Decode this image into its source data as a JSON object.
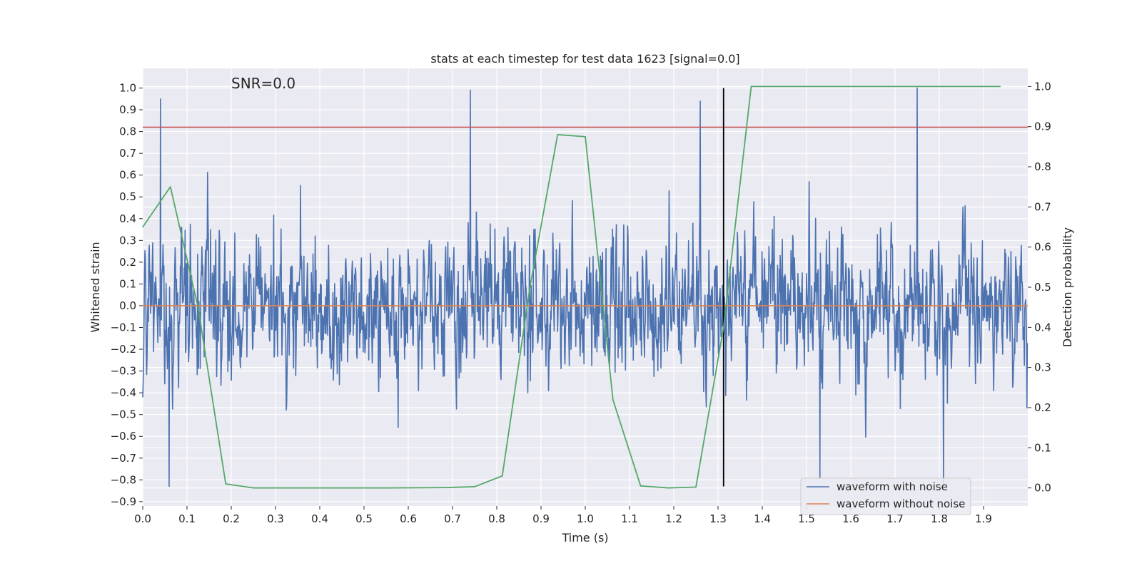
{
  "chart_data": {
    "type": "line",
    "title": "stats at each timestep for test data 1623 [signal=0.0]",
    "annotation": "SNR=0.0",
    "xlabel": "Time (s)",
    "ylabel": "Whitened strain",
    "y2label": "Detection probability",
    "xlim": [
      0.0,
      2.0
    ],
    "ylim": [
      -0.92,
      1.09
    ],
    "y2lim": [
      -0.045,
      1.045
    ],
    "x_ticks": [
      "0.0",
      "0.1",
      "0.2",
      "0.3",
      "0.4",
      "0.5",
      "0.6",
      "0.7",
      "0.8",
      "0.9",
      "1.0",
      "1.1",
      "1.2",
      "1.3",
      "1.4",
      "1.5",
      "1.6",
      "1.7",
      "1.8",
      "1.9"
    ],
    "y_ticks": [
      "1.0",
      "0.9",
      "0.8",
      "0.7",
      "0.6",
      "0.5",
      "0.4",
      "0.3",
      "0.2",
      "0.1",
      "0.0",
      "−0.1",
      "−0.2",
      "−0.3",
      "−0.4",
      "−0.5",
      "−0.6",
      "−0.7",
      "−0.8",
      "−0.9"
    ],
    "y2_ticks": [
      "1.0",
      "0.9",
      "0.8",
      "0.7",
      "0.6",
      "0.5",
      "0.4",
      "0.3",
      "0.2",
      "0.1",
      "0.0"
    ],
    "grid": true,
    "legend_position": "bottom-right",
    "series": [
      {
        "name": "waveform with noise",
        "axis": "left",
        "color": "#4c72b0",
        "sample_rate": 1024,
        "amplitude_range": [
          -0.83,
          1.0
        ],
        "notable_peaks": [
          [
            0.04,
            0.95
          ],
          [
            0.74,
            0.99
          ],
          [
            1.75,
            1.0
          ],
          [
            1.26,
            0.94
          ],
          [
            0.06,
            -0.83
          ],
          [
            1.81,
            -0.83
          ],
          [
            1.53,
            -0.79
          ]
        ]
      },
      {
        "name": "waveform without noise",
        "axis": "left",
        "color": "#dd8452",
        "x": [
          0.0,
          2.0
        ],
        "y": [
          0.0,
          0.0
        ]
      },
      {
        "axis": "right",
        "color": "#55a868",
        "x": [
          0.0,
          0.0625,
          0.125,
          0.1875,
          0.25,
          0.3125,
          0.375,
          0.4375,
          0.5,
          0.5625,
          0.625,
          0.6875,
          0.75,
          0.8125,
          0.875,
          0.9375,
          1.0,
          1.0625,
          1.125,
          1.1875,
          1.25,
          1.3125,
          1.375,
          1.4375,
          1.5,
          1.5625,
          1.625,
          1.6875,
          1.75,
          1.8125,
          1.875,
          1.9375
        ],
        "y": [
          0.65,
          0.75,
          0.45,
          0.01,
          0.0,
          0.0,
          0.0,
          0.0,
          0.0,
          0.0,
          0.0005,
          0.001,
          0.003,
          0.03,
          0.5,
          0.88,
          0.875,
          0.22,
          0.005,
          0.0,
          0.002,
          0.4,
          1.0,
          1.0,
          1.0,
          1.0,
          1.0,
          1.0,
          1.0,
          1.0,
          1.0,
          1.0
        ]
      }
    ],
    "threshold": {
      "axis": "left",
      "y": 0.82,
      "color": "#c44e52"
    },
    "marker_line": {
      "x": 1.3125,
      "y": [
        -0.83,
        1.0
      ],
      "color": "#000000"
    }
  }
}
